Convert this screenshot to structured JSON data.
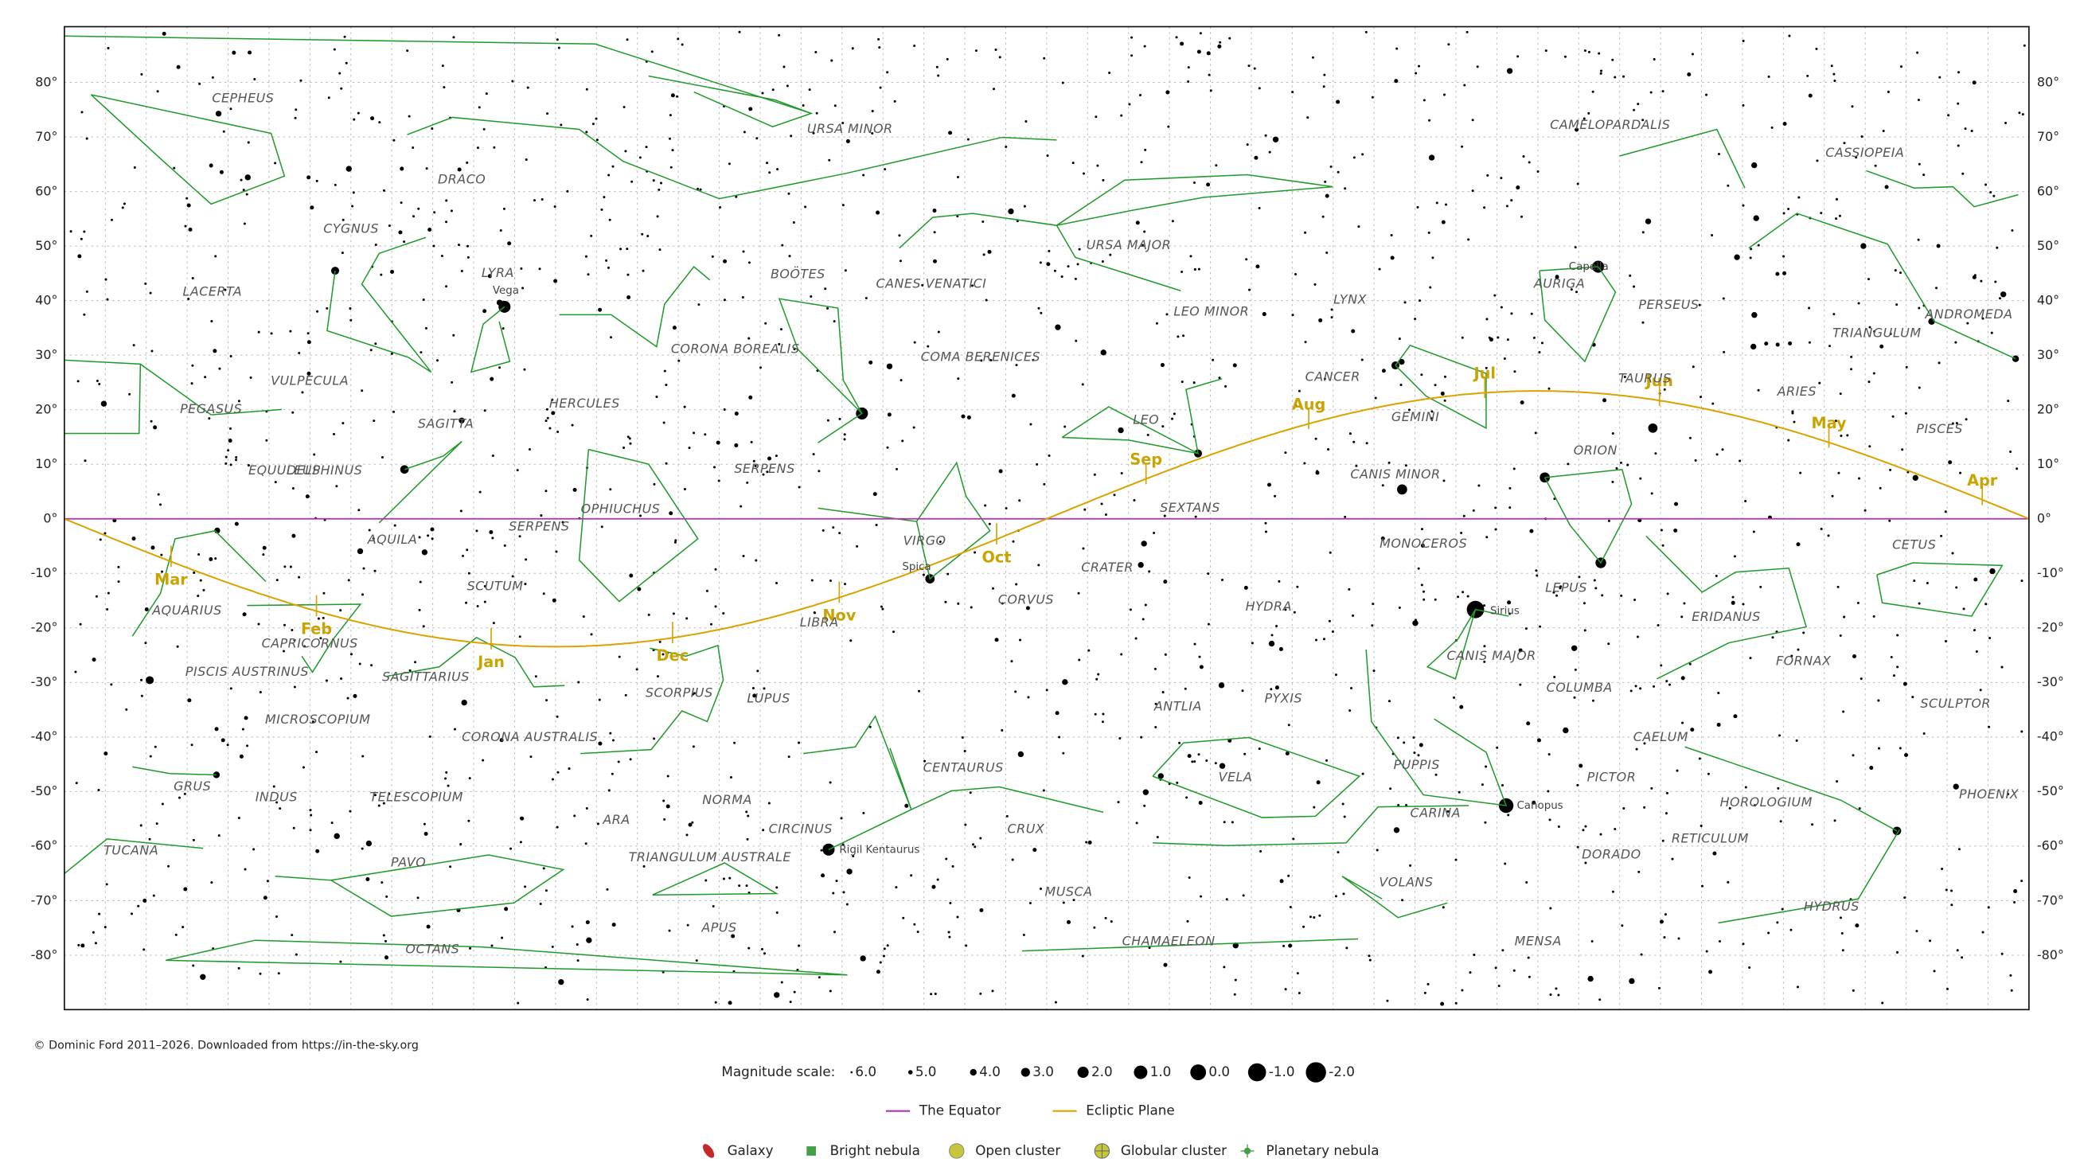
{
  "credit": "© Dominic Ford 2011–2026. Downloaded from https://in-the-sky.org",
  "dec_labels": [
    "80°",
    "70°",
    "60°",
    "50°",
    "40°",
    "30°",
    "20°",
    "10°",
    "0°",
    "-10°",
    "-20°",
    "-30°",
    "-40°",
    "-50°",
    "-60°",
    "-70°",
    "-80°"
  ],
  "ecliptic_months": [
    "Mar",
    "Feb",
    "Jan",
    "Dec",
    "Nov",
    "Oct",
    "Sep",
    "Aug",
    "Jul",
    "Jun",
    "May",
    "Apr"
  ],
  "constellations": [
    "CEPHEUS",
    "URSA MINOR",
    "CAMELOPARDALIS",
    "CASSIOPEIA",
    "DRACO",
    "CYGNUS",
    "URSA MAJOR",
    "BOÖTES",
    "CANES VENATICI",
    "AURIGA",
    "LACERTA",
    "LYRA",
    "LYNX",
    "LEO MINOR",
    "PERSEUS",
    "ANDROMEDA",
    "TRIANGULUM",
    "CORONA BOREALIS",
    "COMA BERENICES",
    "VULPECULA",
    "CANCER",
    "TAURUS",
    "ARIES",
    "HERCULES",
    "PEGASUS",
    "SAGITTA",
    "LEO",
    "GEMINI",
    "PISCES",
    "ORION",
    "SERPENS",
    "EQUULEUS",
    "DELPHINUS",
    "CANIS MINOR",
    "OPHIUCHUS",
    "SEXTANS",
    "AQUILA",
    "SERPENS",
    "VIRGO",
    "MONOCEROS",
    "CETUS",
    "CRATER",
    "SCUTUM",
    "LEPUS",
    "CORVUS",
    "HYDRA",
    "AQUARIUS",
    "LIBRA",
    "ERIDANUS",
    "CAPRICORNUS",
    "CANIS MAJOR",
    "FORNAX",
    "PISCIS AUSTRINUS",
    "SAGITTARIUS",
    "SCORPIUS",
    "COLUMBA",
    "LUPUS",
    "PYXIS",
    "SCULPTOR",
    "ANTLIA",
    "MICROSCOPIUM",
    "CORONA AUSTRALIS",
    "CAELUM",
    "CENTAURUS",
    "PUPPIS",
    "VELA",
    "PICTOR",
    "GRUS",
    "INDUS",
    "TELESCOPIUM",
    "NORMA",
    "HOROLOGIUM",
    "PHOENIX",
    "CARINA",
    "ARA",
    "CIRCINUS",
    "CRUX",
    "RETICULUM",
    "TUCANA",
    "DORADO",
    "TRIANGULUM AUSTRALE",
    "PAVO",
    "VOLANS",
    "MUSCA",
    "HYDRUS",
    "APUS",
    "CHAMAELEON",
    "MENSA",
    "OCTANS"
  ],
  "star_labels": [
    "Vega",
    "Capella",
    "Sirius",
    "Spica",
    "Canopus",
    "Rigil Kentaurus"
  ],
  "legend": {
    "magnitude_title": "Magnitude scale:",
    "magnitudes": [
      "6.0",
      "5.0",
      "4.0",
      "3.0",
      "2.0",
      "1.0",
      "0.0",
      "-1.0",
      "-2.0"
    ],
    "lines": [
      "The Equator",
      "Ecliptic Plane"
    ],
    "objects": [
      "Galaxy",
      "Bright nebula",
      "Open cluster",
      "Globular cluster",
      "Planetary nebula"
    ]
  }
}
